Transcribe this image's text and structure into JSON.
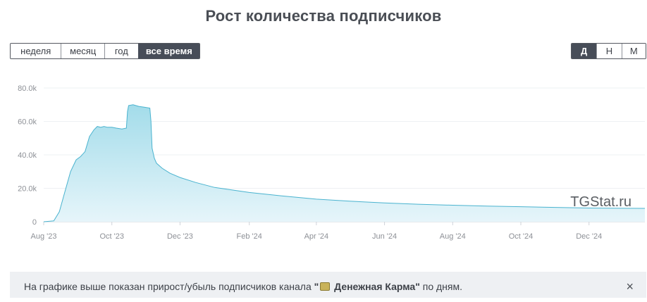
{
  "title": "Рост количества подписчиков",
  "range_buttons": [
    "неделя",
    "месяц",
    "год",
    "все время"
  ],
  "range_active": 3,
  "scale_buttons": [
    "Д",
    "Н",
    "М"
  ],
  "scale_active": 0,
  "watermark": "TGStat.ru",
  "notice": {
    "prefix": "На графике выше показан прирост/убыль подписчиков канала ",
    "channel_quote_open": "\"",
    "channel_name": "Денежная Карма",
    "channel_quote_close": "\"",
    "suffix": " по дням.",
    "close_symbol": "×",
    "channel_icon": "money-emoji-icon"
  },
  "colors": {
    "line": "#4ab3cf",
    "fill_top": "#a3dcea",
    "fill_bottom": "#e6f5fa",
    "active_button": "#474d58"
  },
  "chart_data": {
    "type": "area",
    "title": "Рост количества подписчиков",
    "xlabel": "",
    "ylabel": "",
    "ylim": [
      0,
      80000
    ],
    "yticks": [
      0,
      20000,
      40000,
      60000,
      80000
    ],
    "ytick_labels": [
      "0",
      "20.0k",
      "40.0k",
      "60.0k",
      "80.0k"
    ],
    "xlim": [
      "2023-08-01",
      "2025-01-20"
    ],
    "xticks": [
      "2023-08-01",
      "2023-10-01",
      "2023-12-01",
      "2024-02-01",
      "2024-04-01",
      "2024-06-01",
      "2024-08-01",
      "2024-10-01",
      "2024-12-01"
    ],
    "xtick_labels": [
      "Aug '23",
      "Oct '23",
      "Dec '23",
      "Feb '24",
      "Apr '24",
      "Jun '24",
      "Aug '24",
      "Oct '24",
      "Dec '24"
    ],
    "grid": true,
    "legend": "none",
    "series": [
      {
        "x": [
          "2023-08-01",
          "2023-08-10",
          "2023-08-15",
          "2023-08-20",
          "2023-08-25",
          "2023-08-30",
          "2023-09-03",
          "2023-09-07",
          "2023-09-11",
          "2023-09-15",
          "2023-09-18",
          "2023-09-21",
          "2023-09-24",
          "2023-09-27",
          "2023-10-01",
          "2023-10-05",
          "2023-10-10",
          "2023-10-14",
          "2023-10-15",
          "2023-10-16",
          "2023-10-20",
          "2023-10-25",
          "2023-10-30",
          "2023-11-04",
          "2023-11-05",
          "2023-11-06",
          "2023-11-08",
          "2023-11-10",
          "2023-11-15",
          "2023-11-22",
          "2023-12-01",
          "2023-12-15",
          "2024-01-01",
          "2024-02-01",
          "2024-03-01",
          "2024-04-01",
          "2024-05-01",
          "2024-06-01",
          "2024-07-01",
          "2024-08-01",
          "2024-09-01",
          "2024-10-01",
          "2024-11-01",
          "2024-12-01",
          "2025-01-20"
        ],
        "y": [
          0,
          500,
          6000,
          18000,
          30000,
          37000,
          39000,
          42000,
          51000,
          55000,
          57000,
          56500,
          57000,
          56500,
          56500,
          56000,
          55500,
          56000,
          66000,
          69500,
          70000,
          69000,
          68500,
          68000,
          60000,
          44000,
          38000,
          35000,
          32000,
          29000,
          26500,
          23500,
          20500,
          17500,
          15500,
          13500,
          12300,
          11300,
          10500,
          9900,
          9400,
          9000,
          8600,
          8200,
          8000
        ]
      }
    ]
  }
}
